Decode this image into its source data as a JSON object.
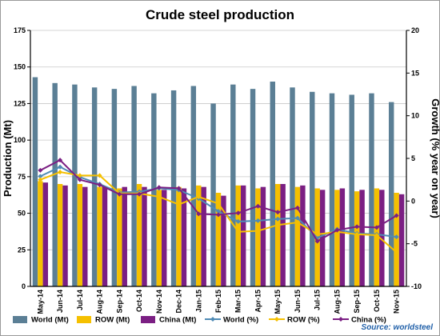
{
  "chart_data": {
    "type": "bar",
    "title": "Crude steel production",
    "ylabel": "Production (Mt)",
    "y2label": "Growth (% year on year)",
    "ylim": [
      0,
      175
    ],
    "yticks": [
      0,
      25,
      50,
      75,
      100,
      125,
      150,
      175
    ],
    "y2lim": [
      -10,
      20
    ],
    "y2ticks": [
      -10,
      -5,
      0,
      5,
      10,
      15,
      20
    ],
    "categories": [
      "May-14",
      "Jun-14",
      "Jul-14",
      "Aug-14",
      "Sep-14",
      "Oct-14",
      "Nov-14",
      "Dec-14",
      "Jan-15",
      "Feb-15",
      "Mar-15",
      "Apr-15",
      "May-15",
      "Jun-15",
      "Jul-15",
      "Aug-15",
      "Sep-15",
      "Oct-15",
      "Nov-15"
    ],
    "grid": true,
    "legend_position": "bottom",
    "source": "Source: worldsteel",
    "bar_series": [
      {
        "name": "World (Mt)",
        "color": "#5b7f95",
        "values": [
          143,
          139,
          138,
          136,
          135,
          137,
          132,
          134,
          137,
          125,
          138,
          135,
          140,
          136,
          133,
          132,
          131,
          132,
          126
        ]
      },
      {
        "name": "ROW (Mt)",
        "color": "#f5c000",
        "values": [
          72,
          70,
          70,
          68,
          67,
          70,
          66,
          68,
          69,
          64,
          69,
          67,
          70,
          68,
          67,
          66,
          65,
          67,
          64
        ]
      },
      {
        "name": "China (Mt)",
        "color": "#7b1f83",
        "values": [
          71,
          69,
          68,
          68,
          68,
          68,
          66,
          67,
          68,
          62,
          69,
          68,
          70,
          69,
          66,
          67,
          66,
          66,
          63
        ]
      }
    ],
    "line_series": [
      {
        "name": "World (%)",
        "color": "#4f8bb5",
        "values": [
          2.9,
          4.0,
          2.8,
          2.0,
          1.0,
          1.1,
          1.5,
          1.3,
          0.3,
          -1.2,
          -2.4,
          -2.3,
          -2.1,
          -2.0,
          -4.3,
          -3.3,
          -3.8,
          -3.9,
          -4.2
        ]
      },
      {
        "name": "ROW (%)",
        "color": "#f5c000",
        "values": [
          2.5,
          3.4,
          3.0,
          3.0,
          0.9,
          0.9,
          0.5,
          -0.4,
          0.5,
          -0.3,
          -3.6,
          -3.5,
          -2.8,
          -2.5,
          -3.9,
          -3.6,
          -3.9,
          -4.0,
          -6.0
        ]
      },
      {
        "name": "China (%)",
        "color": "#7b1f83",
        "values": [
          3.6,
          4.8,
          2.5,
          1.9,
          0.8,
          0.8,
          1.6,
          1.5,
          -1.5,
          -1.6,
          -1.4,
          -0.6,
          -1.3,
          -0.8,
          -4.7,
          -3.4,
          -3.0,
          -3.1,
          -1.7
        ]
      }
    ]
  }
}
